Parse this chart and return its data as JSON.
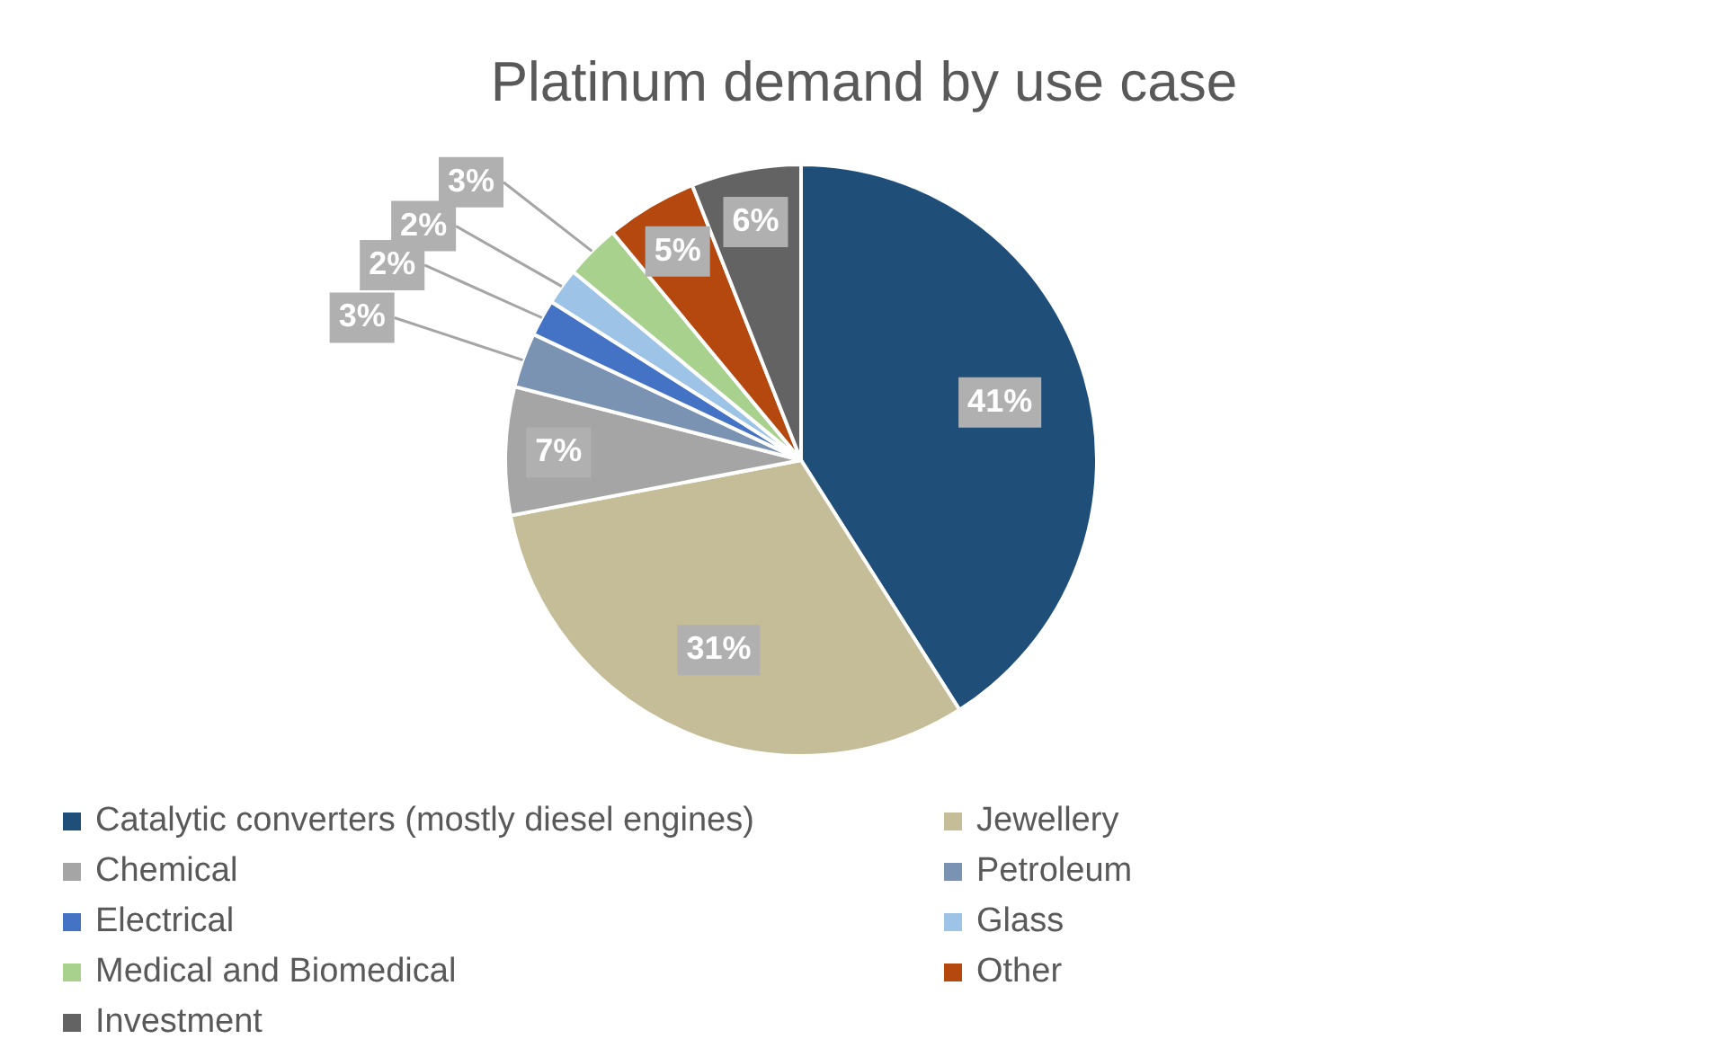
{
  "chart_data": {
    "type": "pie",
    "title": "Platinum demand by use case",
    "categories": [
      "Catalytic converters (mostly diesel engines)",
      "Jewellery",
      "Chemical",
      "Petroleum",
      "Electrical",
      "Glass",
      "Medical and Biomedical",
      "Other",
      "Investment"
    ],
    "values": [
      41,
      31,
      7,
      3,
      2,
      2,
      3,
      5,
      6
    ],
    "colors": [
      "#1f4e79",
      "#c4bd97",
      "#a5a5a5",
      "#7b93b3",
      "#4472c4",
      "#9dc3e6",
      "#a9d18e",
      "#b5480f",
      "#636363"
    ],
    "value_labels": [
      "41%",
      "31%",
      "7%",
      "3%",
      "2%",
      "2%",
      "3%",
      "5%",
      "6%"
    ],
    "legend": "bottom"
  }
}
